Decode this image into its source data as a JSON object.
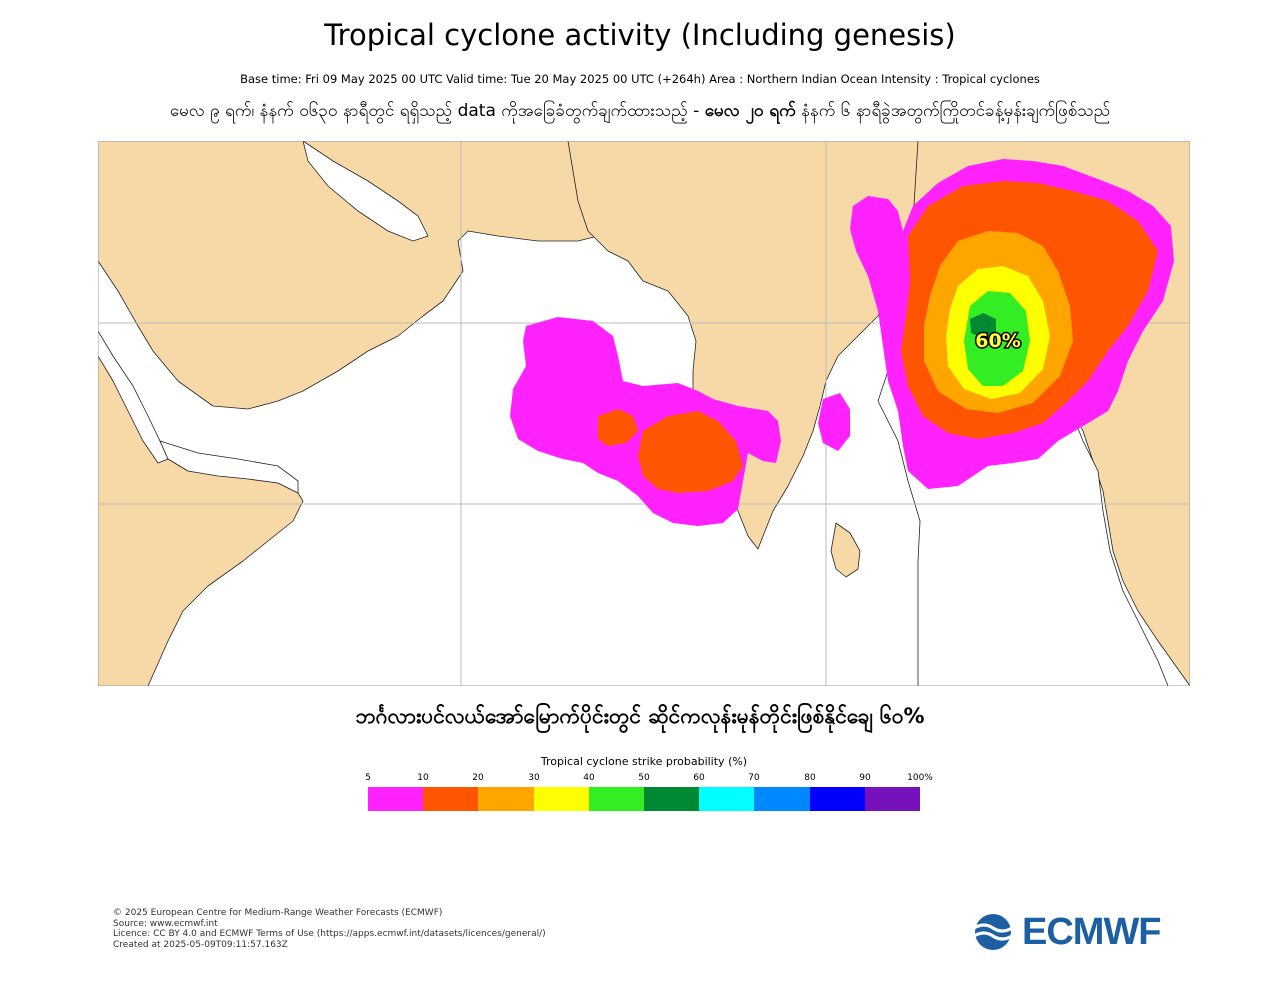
{
  "header": {
    "title": "Tropical cyclone activity (Including genesis)",
    "subtitle": "Base time: Fri 09 May 2025 00 UTC Valid time: Tue 20 May 2025 00 UTC (+264h) Area : Northern Indian Ocean Intensity : Tropical cyclones",
    "myanmar_part1": "မေလ ၉ ရက်၊ နံနက် ၀၆၃၀ နာရီတွင် ရရှိသည့် data ကိုအခြေခံတွက်ချက်ထားသည့် - ",
    "myanmar_bold": "မေလ ၂၀ ရက်",
    "myanmar_part2": " နံနက် ၆ နာရီခွဲအတွက်ကြိုတင်ခန့်မှန်းချက်ဖြစ်သည်"
  },
  "map": {
    "region": "Northern Indian Ocean",
    "max_label": "60%",
    "land_color": "#f7d9a8",
    "sea_color": "#ffffff"
  },
  "annotation": "ဘင်္ဂလားပင်လယ်အော်မြောက်ပိုင်းတွင် ဆိုင်ကလုန်းမုန်တိုင်းဖြစ်နိုင်ချေ ၆၀%",
  "legend": {
    "title": "Tropical cyclone strike probability (%)",
    "ticks": [
      "5",
      "10",
      "20",
      "30",
      "40",
      "50",
      "60",
      "70",
      "80",
      "90",
      "100%"
    ],
    "colors": [
      "#ff22ff",
      "#ff5500",
      "#ffa500",
      "#ffff00",
      "#33ee22",
      "#008833",
      "#00ffff",
      "#0088ff",
      "#0000ff",
      "#7711bb"
    ]
  },
  "footer": {
    "line1": "© 2025 European Centre for Medium-Range Weather Forecasts (ECMWF)",
    "line2": "Source: www.ecmwf.int",
    "line3": "Licence: CC BY 4.0 and ECMWF Terms of Use (https://apps.ecmwf.int/datasets/licences/general/)",
    "line4": "Created at 2025-05-09T09:11:57.163Z"
  },
  "logo": {
    "text": "ECMWF",
    "color": "#1d5fa3",
    "icon": "ecmwf-logo-icon"
  }
}
